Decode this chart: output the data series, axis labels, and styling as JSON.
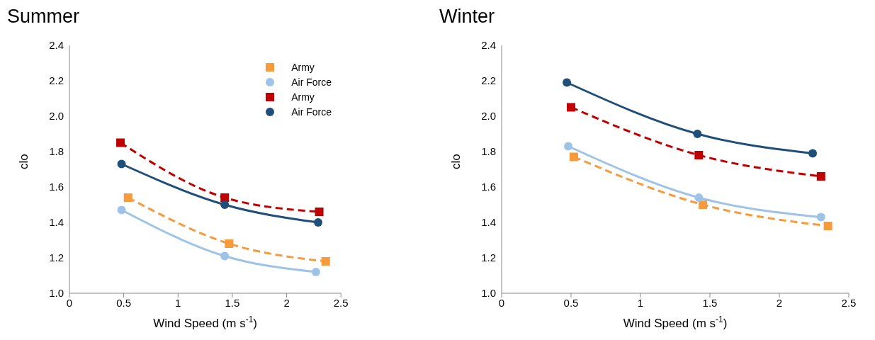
{
  "chart_data": [
    {
      "type": "line",
      "title": "Summer",
      "xlabel": "Wind Speed (m s$^{-1}$)",
      "ylabel": "clo",
      "xlim": [
        0,
        2.5
      ],
      "xticks": [
        0,
        0.5,
        1,
        1.5,
        2,
        2.5
      ],
      "ylim": [
        1.0,
        2.4
      ],
      "yticks": [
        {
          "value": 1.0,
          "label": "1.0"
        },
        {
          "value": 1.2,
          "label": "1.2"
        },
        {
          "value": 1.4,
          "label": "1.4"
        },
        {
          "value": 1.6,
          "label": "1.6"
        },
        {
          "value": 1.8,
          "label": "1.8"
        },
        {
          "value": 2.0,
          "label": "2.0"
        },
        {
          "value": 2.2,
          "label": "2.2"
        },
        {
          "value": 2.4,
          "label": "2.4"
        }
      ],
      "grid": false,
      "legend": "top right",
      "series": [
        {
          "name": "Army",
          "color": "#f79a3b",
          "marker": "square",
          "line_style": "dashed",
          "x": [
            0.54,
            1.47,
            2.36
          ],
          "values": [
            1.54,
            1.28,
            1.18
          ]
        },
        {
          "name": "Air Force",
          "color": "#9dc3e6",
          "marker": "circle",
          "line_style": "solid",
          "x": [
            0.48,
            1.43,
            2.27
          ],
          "values": [
            1.47,
            1.21,
            1.12
          ]
        },
        {
          "name": "Army",
          "color": "#c00000",
          "marker": "square",
          "line_style": "dashed",
          "x": [
            0.47,
            1.43,
            2.3
          ],
          "values": [
            1.85,
            1.54,
            1.46
          ]
        },
        {
          "name": "Air Force",
          "color": "#1f4e79",
          "marker": "circle",
          "line_style": "solid",
          "x": [
            0.48,
            1.43,
            2.29
          ],
          "values": [
            1.73,
            1.5,
            1.4
          ]
        }
      ]
    },
    {
      "type": "line",
      "title": "Winter",
      "xlabel": "Wind Speed (m s$^{-1}$)",
      "ylabel": "clo",
      "xlim": [
        0,
        2.5
      ],
      "xticks": [
        0,
        0.5,
        1,
        1.5,
        2,
        2.5
      ],
      "ylim": [
        1.0,
        2.4
      ],
      "yticks": [
        {
          "value": 1.0,
          "label": "1.0"
        },
        {
          "value": 1.2,
          "label": "1.2"
        },
        {
          "value": 1.4,
          "label": "1.4"
        },
        {
          "value": 1.6,
          "label": "1.6"
        },
        {
          "value": 1.8,
          "label": "1.8"
        },
        {
          "value": 2.0,
          "label": "2.0"
        },
        {
          "value": 2.2,
          "label": "2.2"
        },
        {
          "value": 2.4,
          "label": "2.4"
        }
      ],
      "grid": false,
      "series": [
        {
          "color": "#f79a3b",
          "marker": "square",
          "line_style": "dashed",
          "x": [
            0.52,
            1.45,
            2.35
          ],
          "values": [
            1.77,
            1.5,
            1.38
          ]
        },
        {
          "color": "#9dc3e6",
          "marker": "circle",
          "line_style": "solid",
          "x": [
            0.48,
            1.42,
            2.3
          ],
          "values": [
            1.83,
            1.54,
            1.43
          ]
        },
        {
          "color": "#c00000",
          "marker": "square",
          "line_style": "dashed",
          "x": [
            0.5,
            1.42,
            2.3
          ],
          "values": [
            2.05,
            1.78,
            1.66
          ]
        },
        {
          "color": "#1f4e79",
          "marker": "circle",
          "line_style": "solid",
          "x": [
            0.47,
            1.41,
            2.24
          ],
          "values": [
            2.19,
            1.9,
            1.79
          ]
        }
      ]
    }
  ]
}
